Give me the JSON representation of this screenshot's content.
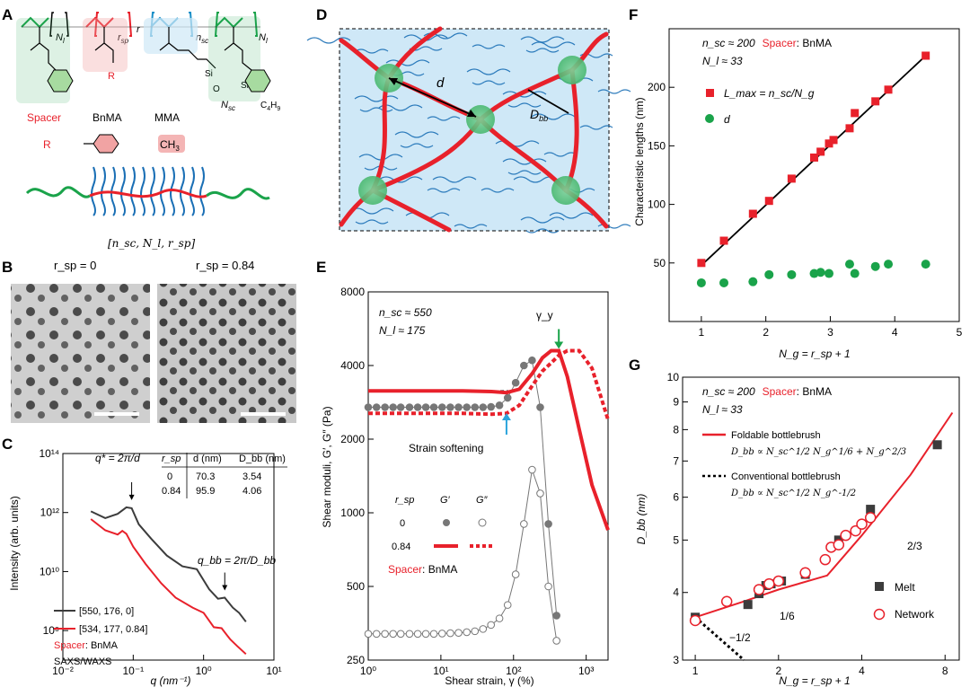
{
  "colors": {
    "red": "#e8212b",
    "green": "#1aa34a",
    "pink": "#f1a3a3",
    "blue": "#1a6fb5",
    "ltblue": "#cfe8f7",
    "cyan": "#2aa4dc",
    "dark": "#3c3c3c",
    "gray": "#777777"
  },
  "panels": {
    "A": "A",
    "B": "B",
    "C": "C",
    "D": "D",
    "E": "E",
    "F": "F",
    "G": "G"
  },
  "panelA": {
    "n_l": "N",
    "n_l_sub": "l",
    "r_sp": "r",
    "r_sp_sub": "sp",
    "r_letter": "r",
    "n_sc": "n",
    "n_sc_sub": "sc",
    "n_l2": "N",
    "n_l2_sub": "l",
    "R": "R",
    "si1": "Si",
    "si2": "Si",
    "o": "O",
    "nsc2": "N",
    "nsc2_sub": "sc",
    "c4h9": "C",
    "c4h9_sub": "4",
    "c4h9_h": "H",
    "c4h9_sub2": "9",
    "spacer": "Spacer",
    "bnma": "BnMA",
    "mma": "MMA",
    "R2": "R",
    "ch3": "CH",
    "ch3_sub": "3",
    "notation": "[n_sc, N_l, r_sp]"
  },
  "panelB": {
    "left_label": "r_sp = 0",
    "right_label": "r_sp = 0.84"
  },
  "panelC": {
    "ylabel": "Intensity (arb. units)",
    "xlabel": "q (nm⁻¹)",
    "q_star": "q* = 2π/d",
    "q_bb": "q_bb = 2π/D_bb",
    "table_headers": [
      "r_sp",
      "d (nm)",
      "D_bb (nm)"
    ],
    "table_rows": [
      [
        "0",
        "70.3",
        "3.54"
      ],
      [
        "0.84",
        "95.9",
        "4.06"
      ]
    ],
    "legend": [
      "[550, 176, 0]",
      "[534, 177, 0.84]"
    ],
    "spacer_label": "Spacer",
    "spacer_value": ": BnMA",
    "saxs": "SAXS/WAXS"
  },
  "panelD": {
    "d": "d",
    "dbb": "D",
    "dbb_sub": "bb"
  },
  "panelE": {
    "ylabel": "Shear moduli, G′, G″ (Pa)",
    "xlabel": "Shear strain, γ (%)",
    "n_sc": "n_sc ≈ 550",
    "n_l": "N_l ≈ 175",
    "gamma_y": "γ_y",
    "softening": "Strain softening",
    "legend_rsp": "r_sp",
    "legend_g1": "G′",
    "legend_g2": "G″",
    "legend_0": "0",
    "legend_084": "0.84",
    "spacer_label": "Spacer",
    "spacer_value": ": BnMA"
  },
  "panelF": {
    "ylabel": "Characteristic lengths (nm)",
    "xlabel": "N_g = r_sp + 1",
    "n_sc": "n_sc ≈ 200",
    "spacer": "Spacer",
    "bnma": ": BnMA",
    "n_l": "N_l ≈ 33",
    "lmax": "L_max = n_sc/N_g",
    "d": "d"
  },
  "panelG": {
    "ylabel": "D_bb (nm)",
    "xlabel": "N_g = r_sp + 1",
    "n_sc": "n_sc ≈ 200",
    "spacer": "Spacer",
    "bnma": ": BnMA",
    "n_l": "N_l ≈ 33",
    "foldable": "Foldable bottlebrush",
    "foldable_eq": "D_bb ∝ N_sc^1/2 N_g^1/6 + N_g^2/3",
    "conventional": "Conventional bottlebrush",
    "conventional_eq": "D_bb ∝ N_sc^1/2 N_g^-1/2",
    "slope1": "1/6",
    "slope2": "2/3",
    "slope3": "−1/2",
    "melt": "Melt",
    "network": "Network"
  },
  "chart_data": [
    {
      "type": "line",
      "panel": "C",
      "title": "",
      "xlabel": "q (nm⁻¹)",
      "ylabel": "Intensity (arb. units)",
      "xscale": "log",
      "yscale": "log",
      "xlim": [
        0.01,
        10
      ],
      "ylim": [
        10000000.0,
        100000000000000.0
      ],
      "xticks": [
        "10⁻²",
        "10⁻¹",
        "10⁰",
        "10¹"
      ],
      "yticks": [
        "10⁸",
        "10¹⁰",
        "10¹²",
        "10¹⁴"
      ],
      "series": [
        {
          "name": "[550, 176, 0]",
          "color": "#3c3c3c",
          "x": [
            0.025,
            0.04,
            0.06,
            0.08,
            0.095,
            0.12,
            0.18,
            0.3,
            0.5,
            0.8,
            1.2,
            1.6,
            2.0,
            2.6,
            3.2,
            4.0
          ],
          "y": [
            1100000000000.0,
            650000000000.0,
            900000000000.0,
            1500000000000.0,
            1400000000000.0,
            400000000000.0,
            130000000000.0,
            35000000000.0,
            15000000000.0,
            12000000000.0,
            2500000000.0,
            1200000000.0,
            1300000000.0,
            600000000.0,
            400000000.0,
            200000000.0
          ]
        },
        {
          "name": "[534, 177, 0.84]",
          "color": "#e8212b",
          "x": [
            0.025,
            0.04,
            0.06,
            0.07,
            0.08,
            0.1,
            0.15,
            0.25,
            0.4,
            0.7,
            1.0,
            1.4,
            1.8,
            2.4,
            3.0,
            4.0
          ],
          "y": [
            600000000000.0,
            250000000000.0,
            180000000000.0,
            240000000000.0,
            190000000000.0,
            70000000000.0,
            18000000000.0,
            4000000000.0,
            1300000000.0,
            600000000.0,
            400000000.0,
            130000000.0,
            120000000.0,
            50000000.0,
            30000000.0,
            16000000.0
          ]
        }
      ]
    },
    {
      "type": "line",
      "panel": "E",
      "xlabel": "Shear strain, γ (%)",
      "ylabel": "Shear moduli, G′, G″ (Pa)",
      "xscale": "log",
      "yscale": "log",
      "xlim": [
        1,
        2000
      ],
      "ylim": [
        250,
        8000
      ],
      "xticks": [
        "10⁰",
        "10¹",
        "10²",
        "10³"
      ],
      "yticks": [
        "250",
        "500",
        "1000",
        "2000",
        "4000",
        "8000"
      ],
      "series": [
        {
          "name": "G′ r_sp=0",
          "color": "#777777",
          "marker": "filled",
          "x": [
            1,
            1.3,
            1.7,
            2.2,
            2.8,
            3.7,
            4.8,
            6.2,
            8,
            10.4,
            13.5,
            17.5,
            22.7,
            29.4,
            38,
            49,
            64,
            83,
            107,
            139,
            180,
            233,
            302,
            391
          ],
          "y": [
            2700,
            2700,
            2700,
            2700,
            2700,
            2700,
            2700,
            2700,
            2700,
            2700,
            2700,
            2700,
            2700,
            2700,
            2700,
            2710,
            2750,
            2950,
            3400,
            4000,
            4200,
            2700,
            900,
            380
          ]
        },
        {
          "name": "G″ r_sp=0",
          "color": "#777777",
          "marker": "open",
          "x": [
            1,
            1.3,
            1.7,
            2.2,
            2.8,
            3.7,
            4.8,
            6.2,
            8,
            10.4,
            13.5,
            17.5,
            22.7,
            29.4,
            38,
            49,
            64,
            83,
            107,
            139,
            180,
            233,
            302,
            391
          ],
          "y": [
            320,
            320,
            320,
            320,
            320,
            320,
            320,
            320,
            320,
            321,
            322,
            323,
            325,
            328,
            335,
            348,
            370,
            420,
            560,
            900,
            1500,
            1200,
            500,
            300
          ]
        },
        {
          "name": "G′ r_sp=0.84",
          "color": "#e8212b",
          "style": "solid",
          "x": [
            1,
            5,
            20,
            50,
            80,
            120,
            180,
            250,
            330,
            420,
            550,
            800,
            1200,
            2000
          ],
          "y": [
            3150,
            3150,
            3150,
            3130,
            3100,
            3200,
            3700,
            4300,
            4600,
            4600,
            3600,
            2200,
            1300,
            850
          ]
        },
        {
          "name": "G″ r_sp=0.84",
          "color": "#e8212b",
          "style": "dashed",
          "x": [
            1,
            5,
            20,
            50,
            80,
            120,
            180,
            250,
            330,
            420,
            550,
            800,
            1200,
            2000
          ],
          "y": [
            2550,
            2550,
            2550,
            2530,
            2550,
            2750,
            3300,
            3800,
            4100,
            4400,
            4600,
            4600,
            3900,
            2400
          ]
        }
      ]
    },
    {
      "type": "scatter",
      "panel": "F",
      "xlabel": "N_g = r_sp + 1",
      "ylabel": "Characteristic lengths (nm)",
      "xlim": [
        0.5,
        5
      ],
      "ylim": [
        0,
        250
      ],
      "xticks": [
        "1",
        "2",
        "3",
        "4",
        "5"
      ],
      "yticks": [
        "50",
        "100",
        "150",
        "200"
      ],
      "series": [
        {
          "name": "L_max = n_sc/N_g",
          "color": "#e8212b",
          "marker": "square",
          "x": [
            1,
            1.35,
            1.8,
            2.05,
            2.4,
            2.75,
            2.85,
            2.98,
            3.05,
            3.3,
            3.38,
            3.7,
            3.9,
            4.48
          ],
          "y": [
            50,
            69,
            92,
            103,
            122,
            140,
            145,
            152,
            155,
            165,
            178,
            188,
            198,
            227
          ]
        },
        {
          "name": "d",
          "color": "#1aa34a",
          "marker": "circle",
          "x": [
            1,
            1.35,
            1.8,
            2.05,
            2.4,
            2.75,
            2.85,
            2.98,
            3.3,
            3.38,
            3.7,
            3.9,
            4.48
          ],
          "y": [
            33,
            33,
            34,
            40,
            40,
            41,
            42,
            41,
            49,
            41,
            47,
            49,
            49
          ]
        },
        {
          "name": "fit",
          "color": "#000000",
          "x": [
            1,
            4.5
          ],
          "y": [
            48,
            228
          ]
        }
      ]
    },
    {
      "type": "scatter",
      "panel": "G",
      "xlabel": "N_g = r_sp + 1",
      "ylabel": "D_bb (nm)",
      "xscale": "log",
      "yscale": "log",
      "xlim": [
        0.9,
        9
      ],
      "ylim": [
        3,
        10
      ],
      "xticks": [
        "1",
        "2",
        "4",
        "8"
      ],
      "yticks": [
        "3",
        "4",
        "5",
        "6",
        "7",
        "8",
        "9",
        "10"
      ],
      "series": [
        {
          "name": "Melt",
          "color": "#3c3c3c",
          "marker": "square",
          "x": [
            1,
            1.55,
            1.7,
            1.8,
            1.88,
            2.05,
            2.5,
            3.3,
            4.3,
            7.5
          ],
          "y": [
            3.6,
            3.8,
            3.98,
            4.12,
            4.15,
            4.2,
            4.32,
            5.0,
            5.7,
            7.5
          ]
        },
        {
          "name": "Network",
          "color": "#e8212b",
          "marker": "open-circle",
          "x": [
            1,
            1.3,
            1.7,
            1.85,
            2.0,
            2.5,
            2.95,
            3.1,
            3.3,
            3.5,
            3.8,
            4.0,
            4.3
          ],
          "y": [
            3.55,
            3.85,
            4.05,
            4.15,
            4.2,
            4.35,
            4.6,
            4.85,
            4.9,
            5.1,
            5.2,
            5.35,
            5.5
          ]
        },
        {
          "name": "Foldable bottlebrush",
          "color": "#e8212b",
          "x": [
            1,
            1.5,
            2,
            3,
            4,
            6,
            8.5
          ],
          "y": [
            3.6,
            3.85,
            4.05,
            4.3,
            5.1,
            6.6,
            8.6
          ]
        },
        {
          "name": "Conventional bottlebrush",
          "color": "#000000",
          "style": "dotted",
          "x": [
            1,
            1.3,
            1.5
          ],
          "y": [
            3.6,
            3.2,
            3.0
          ]
        }
      ]
    }
  ]
}
